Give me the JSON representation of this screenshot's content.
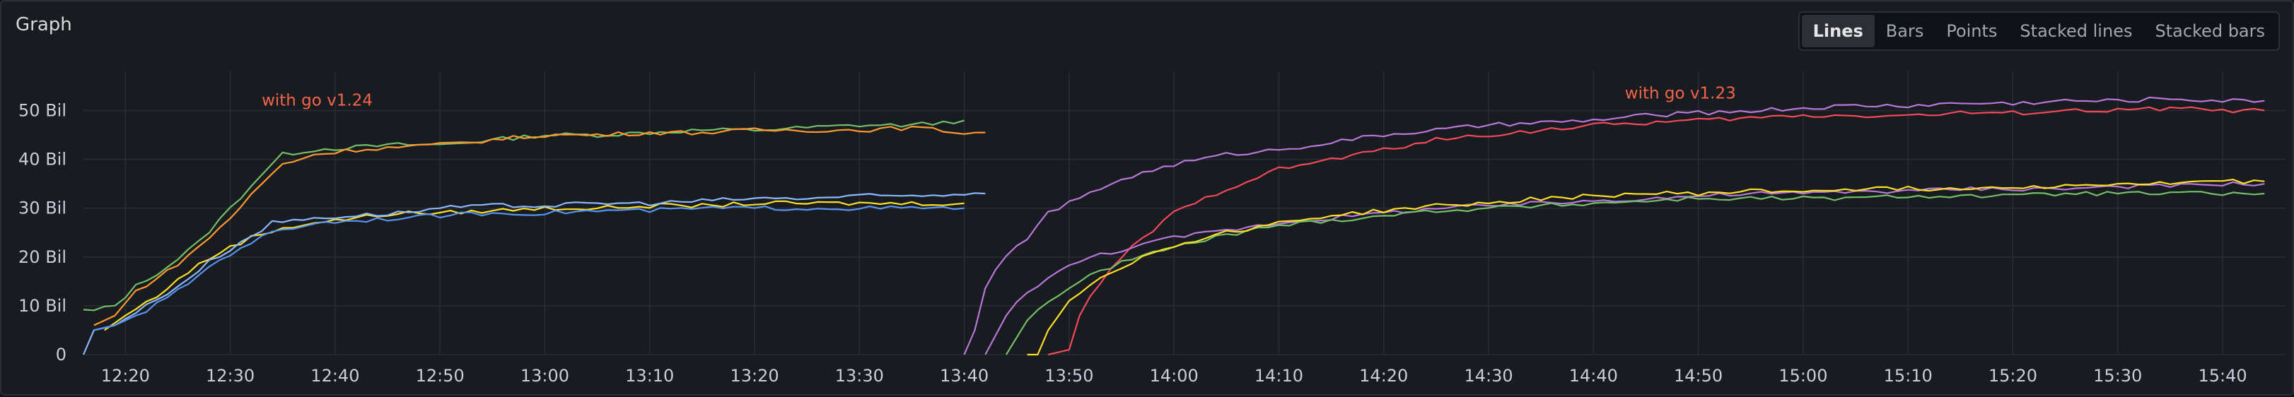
{
  "panel": {
    "title": "Graph"
  },
  "view_options": [
    {
      "label": "Lines",
      "active": true
    },
    {
      "label": "Bars",
      "active": false
    },
    {
      "label": "Points",
      "active": false
    },
    {
      "label": "Stacked lines",
      "active": false
    },
    {
      "label": "Stacked bars",
      "active": false
    }
  ],
  "chart_data": {
    "type": "line",
    "title": "",
    "xlabel": "",
    "ylabel": "",
    "ylim": [
      0,
      55
    ],
    "y_ticks": [
      "0",
      "10 Bil",
      "20 Bil",
      "30 Bil",
      "40 Bil",
      "50 Bil"
    ],
    "y_tick_values": [
      0,
      10,
      20,
      30,
      40,
      50
    ],
    "x_ticks": [
      "12:20",
      "12:30",
      "12:40",
      "12:50",
      "13:00",
      "13:10",
      "13:20",
      "13:30",
      "13:40",
      "13:50",
      "14:00",
      "14:10",
      "14:20",
      "14:30",
      "14:40",
      "14:50",
      "15:00",
      "15:10",
      "15:20",
      "15:30",
      "15:40"
    ],
    "x_unit": "minutes since 12:20",
    "xlim": [
      -4,
      206
    ],
    "grid": true,
    "annotations": [
      {
        "text": "with go v1.24",
        "x": 13,
        "y_minute": 52,
        "y": 51,
        "color": "#f2654a"
      },
      {
        "text": "with go v1.23",
        "x": 143,
        "y": 52.5,
        "color": "#f2654a"
      }
    ],
    "series": [
      {
        "color": "#73bf69",
        "points": [
          [
            -4,
            9
          ],
          [
            -3,
            9
          ],
          [
            -1,
            10
          ],
          [
            1,
            14
          ],
          [
            4,
            18
          ],
          [
            7,
            23
          ],
          [
            10,
            30
          ],
          [
            13,
            37
          ],
          [
            15,
            41
          ],
          [
            18,
            42
          ],
          [
            22,
            42.5
          ],
          [
            26,
            43
          ],
          [
            30,
            43
          ],
          [
            35,
            44
          ],
          [
            40,
            45
          ],
          [
            45,
            45
          ],
          [
            50,
            45.5
          ],
          [
            55,
            46
          ],
          [
            60,
            46
          ],
          [
            65,
            46.5
          ],
          [
            70,
            47
          ],
          [
            75,
            47
          ],
          [
            80,
            48
          ]
        ]
      },
      {
        "color": "#ff9830",
        "points": [
          [
            -3,
            6
          ],
          [
            -1,
            8
          ],
          [
            1,
            13
          ],
          [
            4,
            17
          ],
          [
            7,
            22
          ],
          [
            10,
            28
          ],
          [
            13,
            35
          ],
          [
            15,
            39
          ],
          [
            18,
            41
          ],
          [
            22,
            42
          ],
          [
            26,
            42.5
          ],
          [
            30,
            43
          ],
          [
            35,
            44
          ],
          [
            40,
            45
          ],
          [
            45,
            45
          ],
          [
            50,
            45.5
          ],
          [
            55,
            45.5
          ],
          [
            60,
            46
          ],
          [
            65,
            46
          ],
          [
            70,
            46
          ],
          [
            75,
            46.5
          ],
          [
            80,
            45.5
          ],
          [
            82,
            45.5
          ]
        ]
      },
      {
        "color": "#fade2a",
        "points": [
          [
            -2,
            5
          ],
          [
            0,
            8
          ],
          [
            3,
            12
          ],
          [
            6,
            17
          ],
          [
            9,
            21
          ],
          [
            12,
            24
          ],
          [
            15,
            26
          ],
          [
            18,
            27
          ],
          [
            22,
            28
          ],
          [
            26,
            29
          ],
          [
            30,
            29
          ],
          [
            35,
            29.5
          ],
          [
            40,
            30
          ],
          [
            45,
            30
          ],
          [
            50,
            30.5
          ],
          [
            55,
            30.5
          ],
          [
            60,
            31
          ],
          [
            65,
            31
          ],
          [
            70,
            31
          ],
          [
            75,
            31
          ],
          [
            80,
            31
          ]
        ]
      },
      {
        "color": "#8ab8ff",
        "points": [
          [
            -4,
            0
          ],
          [
            -3,
            5
          ],
          [
            -1,
            6
          ],
          [
            2,
            10
          ],
          [
            5,
            14
          ],
          [
            8,
            19
          ],
          [
            11,
            23
          ],
          [
            14,
            27
          ],
          [
            18,
            28
          ],
          [
            22,
            28.5
          ],
          [
            26,
            29
          ],
          [
            30,
            30
          ],
          [
            35,
            30.5
          ],
          [
            40,
            30.5
          ],
          [
            45,
            31
          ],
          [
            50,
            31
          ],
          [
            55,
            31.5
          ],
          [
            60,
            32
          ],
          [
            65,
            32
          ],
          [
            70,
            32.5
          ],
          [
            75,
            32.5
          ],
          [
            80,
            33
          ],
          [
            82,
            33
          ]
        ]
      },
      {
        "color": "#5794f2",
        "points": [
          [
            -3,
            5
          ],
          [
            -1,
            6
          ],
          [
            2,
            9
          ],
          [
            5,
            13
          ],
          [
            8,
            18
          ],
          [
            11,
            22
          ],
          [
            14,
            25
          ],
          [
            18,
            27
          ],
          [
            22,
            27.5
          ],
          [
            26,
            28
          ],
          [
            30,
            28.5
          ],
          [
            35,
            29
          ],
          [
            40,
            29
          ],
          [
            45,
            29.5
          ],
          [
            50,
            29.5
          ],
          [
            55,
            30
          ],
          [
            60,
            30
          ],
          [
            65,
            30
          ],
          [
            70,
            30
          ],
          [
            75,
            30
          ],
          [
            80,
            30
          ]
        ]
      },
      {
        "color": "#b877d9",
        "points": [
          [
            80,
            0
          ],
          [
            81,
            5
          ],
          [
            82,
            14
          ],
          [
            84,
            20
          ],
          [
            86,
            24
          ],
          [
            88,
            29
          ],
          [
            91,
            32
          ],
          [
            95,
            36
          ],
          [
            100,
            39
          ],
          [
            105,
            41
          ],
          [
            110,
            42
          ],
          [
            115,
            43.5
          ],
          [
            120,
            45
          ],
          [
            125,
            46
          ],
          [
            130,
            47
          ],
          [
            135,
            47.5
          ],
          [
            140,
            48
          ],
          [
            145,
            49
          ],
          [
            150,
            49.5
          ],
          [
            155,
            50
          ],
          [
            160,
            50.5
          ],
          [
            165,
            51
          ],
          [
            170,
            51
          ],
          [
            175,
            51.5
          ],
          [
            180,
            51.5
          ],
          [
            185,
            52
          ],
          [
            190,
            52
          ],
          [
            195,
            52.5
          ],
          [
            200,
            52
          ],
          [
            204,
            52
          ]
        ]
      },
      {
        "color": "#f2495c",
        "points": [
          [
            88,
            0
          ],
          [
            90,
            1
          ],
          [
            91,
            8
          ],
          [
            93,
            15
          ],
          [
            96,
            22
          ],
          [
            100,
            29
          ],
          [
            105,
            34
          ],
          [
            110,
            38
          ],
          [
            115,
            40
          ],
          [
            120,
            42
          ],
          [
            125,
            44
          ],
          [
            130,
            45
          ],
          [
            135,
            46
          ],
          [
            140,
            47
          ],
          [
            145,
            47.5
          ],
          [
            150,
            48
          ],
          [
            155,
            48.5
          ],
          [
            160,
            49
          ],
          [
            165,
            49
          ],
          [
            170,
            49
          ],
          [
            175,
            49.5
          ],
          [
            180,
            49.5
          ],
          [
            185,
            50
          ],
          [
            190,
            50
          ],
          [
            195,
            50.5
          ],
          [
            200,
            50
          ],
          [
            204,
            50
          ]
        ]
      },
      {
        "color": "#b877d9",
        "points": [
          [
            82,
            0
          ],
          [
            84,
            8
          ],
          [
            86,
            13
          ],
          [
            89,
            17
          ],
          [
            92,
            20
          ],
          [
            96,
            22
          ],
          [
            100,
            24
          ],
          [
            105,
            25.5
          ],
          [
            110,
            27
          ],
          [
            115,
            28
          ],
          [
            120,
            29
          ],
          [
            125,
            30
          ],
          [
            130,
            30.5
          ],
          [
            135,
            31
          ],
          [
            140,
            31.5
          ],
          [
            145,
            32
          ],
          [
            150,
            32.5
          ],
          [
            155,
            33
          ],
          [
            160,
            33
          ],
          [
            165,
            33.5
          ],
          [
            170,
            33.5
          ],
          [
            175,
            34
          ],
          [
            180,
            34
          ],
          [
            185,
            34
          ],
          [
            190,
            34.5
          ],
          [
            195,
            34.5
          ],
          [
            200,
            35
          ],
          [
            204,
            35
          ]
        ]
      },
      {
        "color": "#73bf69",
        "points": [
          [
            84,
            0
          ],
          [
            86,
            7
          ],
          [
            88,
            11
          ],
          [
            91,
            15
          ],
          [
            95,
            19
          ],
          [
            100,
            22
          ],
          [
            105,
            24.5
          ],
          [
            110,
            26.5
          ],
          [
            115,
            27.5
          ],
          [
            120,
            28.5
          ],
          [
            125,
            29.5
          ],
          [
            130,
            30
          ],
          [
            135,
            30.5
          ],
          [
            140,
            31
          ],
          [
            145,
            31.5
          ],
          [
            150,
            32
          ],
          [
            155,
            32
          ],
          [
            160,
            32
          ],
          [
            165,
            32
          ],
          [
            170,
            32.5
          ],
          [
            175,
            32.5
          ],
          [
            180,
            32.5
          ],
          [
            185,
            33
          ],
          [
            190,
            33
          ],
          [
            195,
            33
          ],
          [
            200,
            33
          ],
          [
            204,
            33
          ]
        ]
      },
      {
        "color": "#fade2a",
        "points": [
          [
            86,
            0
          ],
          [
            87,
            0
          ],
          [
            88,
            5
          ],
          [
            90,
            11
          ],
          [
            93,
            16
          ],
          [
            97,
            20
          ],
          [
            101,
            23
          ],
          [
            105,
            25
          ],
          [
            110,
            27
          ],
          [
            115,
            28.5
          ],
          [
            120,
            29.5
          ],
          [
            125,
            30.5
          ],
          [
            130,
            31
          ],
          [
            135,
            32
          ],
          [
            140,
            32.5
          ],
          [
            145,
            33
          ],
          [
            150,
            33
          ],
          [
            155,
            33.5
          ],
          [
            160,
            33.5
          ],
          [
            165,
            34
          ],
          [
            170,
            34
          ],
          [
            175,
            34
          ],
          [
            180,
            34.5
          ],
          [
            185,
            34.5
          ],
          [
            190,
            35
          ],
          [
            195,
            35
          ],
          [
            200,
            35.5
          ],
          [
            204,
            35.5
          ]
        ]
      }
    ]
  }
}
